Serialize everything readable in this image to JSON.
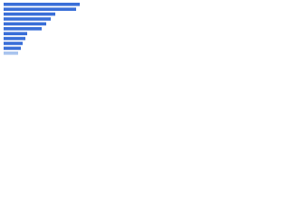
{
  "chart_data": {
    "type": "bar",
    "orientation": "horizontal",
    "categories": [
      null,
      null,
      null,
      null,
      null,
      null,
      null,
      null,
      null,
      null,
      null
    ],
    "values": [
      84,
      80,
      57,
      52,
      47,
      42,
      26,
      24,
      21,
      19,
      16
    ],
    "colors": [
      "#3a6fd8",
      "#3a6fd8",
      "#3a6fd8",
      "#3a6fd8",
      "#3a6fd8",
      "#3a6fd8",
      "#3a6fd8",
      "#3a6fd8",
      "#3a6fd8",
      "#3a6fd8",
      "#a9c4ee"
    ]
  }
}
